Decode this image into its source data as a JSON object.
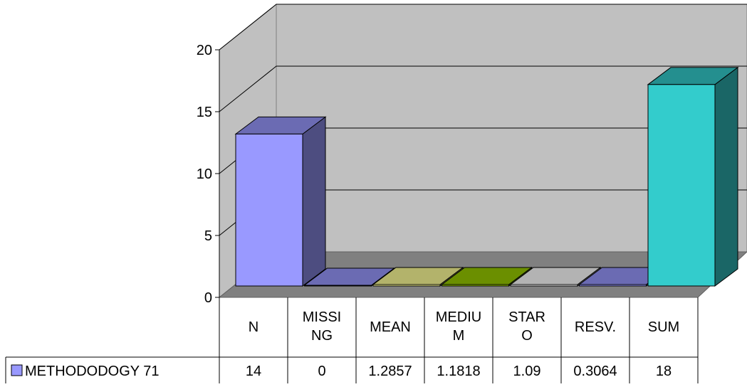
{
  "chart_data": {
    "type": "bar",
    "title": "",
    "xlabel": "",
    "ylabel": "",
    "ylim": [
      0,
      20
    ],
    "yticks": [
      "0",
      "5",
      "10",
      "15",
      "20"
    ],
    "grid": true,
    "legend_position": "bottom-left, in data table",
    "categories": [
      {
        "line1": "N",
        "line2": ""
      },
      {
        "line1": "MISSI",
        "line2": "NG"
      },
      {
        "line1": "MEAN",
        "line2": ""
      },
      {
        "line1": "MEDIU",
        "line2": "M"
      },
      {
        "line1": "STAR",
        "line2": "O"
      },
      {
        "line1": "RESV.",
        "line2": ""
      },
      {
        "line1": "SUM",
        "line2": ""
      }
    ],
    "series": [
      {
        "name": "METHODODOGY 71",
        "values": [
          14,
          0,
          1.2857,
          1.1818,
          1.09,
          0.3064,
          18
        ],
        "value_labels": [
          "14",
          "0",
          "1.2857",
          "1.1818",
          "1.09",
          "0.3064",
          "18"
        ]
      }
    ],
    "bar_colors": [
      "#9999ff",
      "#9999ff",
      "#ffff99",
      "#99cc00",
      "#ffffff",
      "#9999ff",
      "#33cccc"
    ],
    "wall_color": "#c0c0c0",
    "floor_color": "#808080"
  }
}
